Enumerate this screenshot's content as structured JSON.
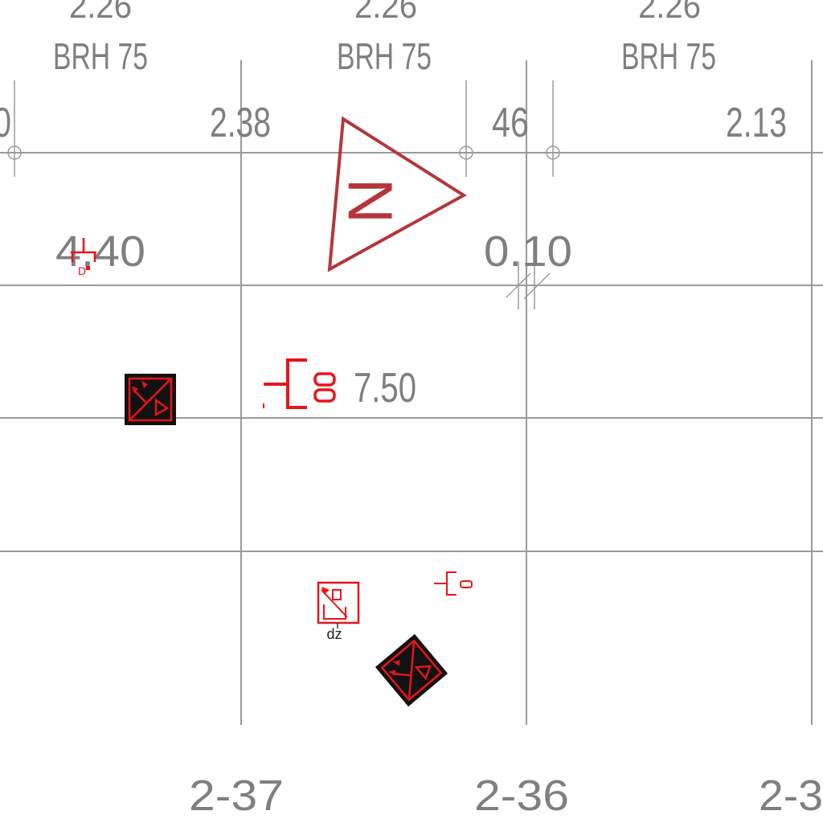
{
  "top_labels": [
    {
      "dim": "2.26",
      "type": "BRH 75"
    },
    {
      "dim": "2.26",
      "type": "BRH 75"
    },
    {
      "dim": "2.26",
      "type": "BRH 75"
    }
  ],
  "bay_dims": {
    "left_partial": "0",
    "left": "2.38",
    "middle": "46",
    "right": "2.13"
  },
  "level_dims": {
    "left": "4.40",
    "right": "0.10",
    "center": "7.50"
  },
  "symbol_labels": {
    "small_socket": "D",
    "small_device": "dz"
  },
  "grid_axes": [
    "2-37",
    "2-36",
    "2-3"
  ],
  "north_arrow_letter": "N",
  "colors": {
    "grid": "#9a9a9a",
    "text": "#7f7f7f",
    "electrical_red": "#e8141b",
    "north_red": "#b5363a",
    "device_black": "#111111"
  }
}
